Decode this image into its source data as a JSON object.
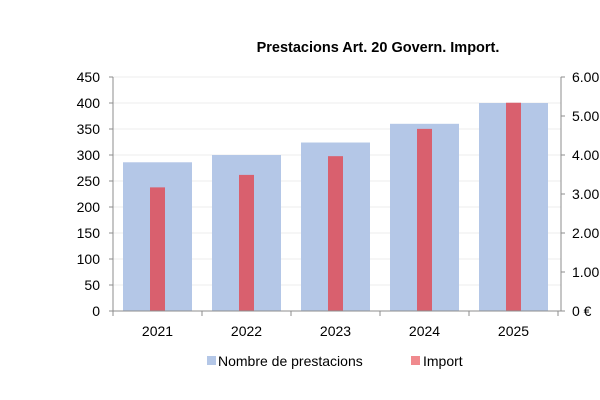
{
  "chart_data": {
    "type": "bar",
    "title": "Prestacions Art. 20 Govern. Import.",
    "categories": [
      "2021",
      "2022",
      "2023",
      "2024",
      "2025"
    ],
    "series": [
      {
        "name": "Nombre de prestacions",
        "axis": "left",
        "color": "#b4c7e7",
        "values": [
          286,
          300,
          324,
          360,
          400
        ]
      },
      {
        "name": "Import",
        "axis": "right",
        "color": "#d9606e",
        "legend_color": "#f08a8e",
        "values": [
          3170000,
          3490000,
          3970000,
          4670000,
          5340000
        ]
      }
    ],
    "left_axis": {
      "ylim": [
        0,
        450
      ],
      "ticks": [
        0,
        50,
        100,
        150,
        200,
        250,
        300,
        350,
        400,
        450
      ],
      "tick_labels": [
        "0",
        "50",
        "100",
        "150",
        "200",
        "250",
        "300",
        "350",
        "400",
        "450"
      ]
    },
    "right_axis": {
      "ylim": [
        0,
        6000000
      ],
      "ticks": [
        0,
        1000000,
        2000000,
        3000000,
        4000000,
        5000000,
        6000000
      ],
      "tick_labels": [
        "0 €",
        "1.00",
        "2.00",
        "3.00",
        "4.00",
        "5.00",
        "6.00"
      ]
    },
    "grid": true,
    "legend_position": "bottom",
    "xlabel": "",
    "ylabel": ""
  }
}
